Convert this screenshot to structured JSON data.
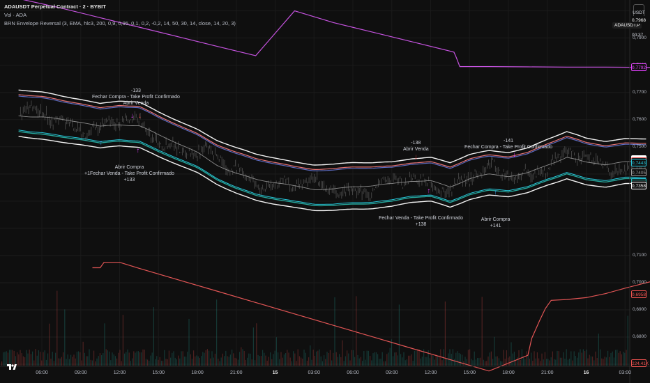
{
  "legend": {
    "title": "ADAUSDT Perpetual Contract · 2 · BYBIT",
    "vol": "Vol · ADA",
    "indicator": "BRN Envelope Reversal (3, EMA, hlc3, 200, 0,9, 0,95, 0,1, 0,2, -0,2, 14, 50, 30, 14, close, 14, 20, 3)"
  },
  "currency_button": "USDT",
  "symbol_tag": "ADAUSDT.P",
  "countdown": "00:37",
  "price_tags": [
    {
      "value": "0,7968",
      "price": 0.7968,
      "bg": "#0f0f0f",
      "fg": "#ffffff",
      "border": "#0f0f0f"
    },
    {
      "value": "0,7792",
      "price": 0.7792,
      "bg": "#0f0f0f",
      "fg": "#e040fb",
      "border": "#e040fb"
    },
    {
      "value": "0,7455",
      "price": 0.7455,
      "bg": "#ffffff",
      "fg": "#000000",
      "border": "#ffffff"
    },
    {
      "value": "0,7447",
      "price": 0.7447,
      "bg": "#0f0f0f",
      "fg": "#ef5350",
      "border": "#ef5350"
    },
    {
      "value": "0,7443",
      "price": 0.7443,
      "bg": "#0f0f0f",
      "fg": "#26c6da",
      "border": "#26c6da"
    },
    {
      "value": "0,7405",
      "price": 0.7405,
      "bg": "#0f0f0f",
      "fg": "#9e9e9e",
      "border": "#9e9e9e"
    },
    {
      "value": "0,7370",
      "price": 0.737,
      "bg": "#0f0f0f",
      "fg": "#26c6da",
      "border": "#26c6da"
    },
    {
      "value": "0,7366",
      "price": 0.7366,
      "bg": "#0f0f0f",
      "fg": "#26a69a",
      "border": "#26a69a"
    },
    {
      "value": "0,7358",
      "price": 0.7358,
      "bg": "#0f0f0f",
      "fg": "#ffffff",
      "border": "#ffffff"
    },
    {
      "value": "0,6958",
      "price": 0.6958,
      "bg": "#0f0f0f",
      "fg": "#ef5350",
      "border": "#ef5350"
    },
    {
      "value": "224,41K",
      "price": 0.6705,
      "bg": "#0f0f0f",
      "fg": "#ef5350",
      "border": "#ef5350"
    }
  ],
  "chart_data": {
    "type": "line",
    "symbol": "ADAUSDT.P",
    "y_ticks": [
      "0,7900",
      "0,7800",
      "0,7700",
      "0,7600",
      "0,7500",
      "0,7400",
      "0,7100",
      "0,7000",
      "0,6900",
      "0,6800"
    ],
    "y_tick_values": [
      0.79,
      0.78,
      0.77,
      0.76,
      0.75,
      0.74,
      0.71,
      0.7,
      0.69,
      0.68
    ],
    "ylim": [
      0.6695,
      0.804
    ],
    "x_ticks": [
      {
        "label": "06:00",
        "bold": false
      },
      {
        "label": "09:00",
        "bold": false
      },
      {
        "label": "12:00",
        "bold": false
      },
      {
        "label": "15:00",
        "bold": false
      },
      {
        "label": "18:00",
        "bold": false
      },
      {
        "label": "21:00",
        "bold": false
      },
      {
        "label": "15",
        "bold": true
      },
      {
        "label": "03:00",
        "bold": false
      },
      {
        "label": "06:00",
        "bold": false
      },
      {
        "label": "09:00",
        "bold": false
      },
      {
        "label": "12:00",
        "bold": false
      },
      {
        "label": "15:00",
        "bold": false
      },
      {
        "label": "18:00",
        "bold": false
      },
      {
        "label": "21:00",
        "bold": false
      },
      {
        "label": "16",
        "bold": true
      },
      {
        "label": "03:00",
        "bold": false
      }
    ],
    "x_tick_index": [
      0,
      1,
      2,
      3,
      4,
      5,
      6,
      7,
      8,
      9,
      10,
      11,
      12,
      13,
      14,
      15
    ],
    "x_range": [
      -0.6,
      15.75
    ],
    "series": [
      {
        "color": "#c653e0",
        "points": [
          [
            -0.6,
            0.8045
          ],
          [
            0.5,
            0.801
          ],
          [
            1.5,
            0.7975
          ],
          [
            2.5,
            0.794
          ],
          [
            3.5,
            0.7905
          ],
          [
            4.5,
            0.787
          ],
          [
            5.5,
            0.7835
          ],
          [
            6.5,
            0.8
          ],
          [
            7.5,
            0.7957
          ],
          [
            8.5,
            0.7922
          ],
          [
            9.5,
            0.7887
          ],
          [
            10.5,
            0.7852
          ],
          [
            10.6,
            0.7848
          ],
          [
            10.65,
            0.7832
          ],
          [
            10.75,
            0.7795
          ],
          [
            11.5,
            0.7795
          ],
          [
            12.5,
            0.7794
          ],
          [
            13.5,
            0.7793
          ],
          [
            14.5,
            0.7793
          ],
          [
            15.7,
            0.7792
          ]
        ]
      },
      {
        "color": "#e25555",
        "points": [
          [
            1.3,
            0.7055
          ],
          [
            1.5,
            0.7055
          ],
          [
            1.6,
            0.7075
          ],
          [
            2.0,
            0.7075
          ],
          [
            2.5,
            0.7053
          ],
          [
            3.5,
            0.7011
          ],
          [
            4.5,
            0.6969
          ],
          [
            5.5,
            0.6927
          ],
          [
            6.5,
            0.6885
          ],
          [
            7.5,
            0.6843
          ],
          [
            8.5,
            0.6801
          ],
          [
            9.5,
            0.6759
          ],
          [
            10.5,
            0.6717
          ],
          [
            11.5,
            0.6675
          ],
          [
            12.5,
            0.6733
          ],
          [
            12.6,
            0.6795
          ],
          [
            12.8,
            0.686
          ],
          [
            12.95,
            0.6905
          ],
          [
            13.1,
            0.6935
          ],
          [
            13.5,
            0.6938
          ],
          [
            14.0,
            0.6945
          ],
          [
            14.5,
            0.696
          ],
          [
            15.0,
            0.698
          ],
          [
            15.5,
            0.6998
          ],
          [
            15.7,
            0.7005
          ]
        ]
      }
    ],
    "annotations": [
      {
        "lines": [
          "-133",
          "Fechar Compra - Take Profit Confirmado",
          "Abrir Venda"
        ],
        "x": 2.42,
        "price": 0.7716,
        "arrows": [
          {
            "glyph": "↓",
            "color": "#e040fb",
            "x": 2.32,
            "price": 0.7611
          },
          {
            "glyph": "↓",
            "color": "#ef5350",
            "x": 2.52,
            "price": 0.7611
          }
        ]
      },
      {
        "lines": [
          "Abrir Compra",
          "+1Fechar Venda - Take Profit Confirmado",
          "+133"
        ],
        "x": 2.25,
        "price": 0.7436,
        "arrows": [
          {
            "glyph": "↑",
            "color": "#42a5f5",
            "x": 1.52,
            "price": 0.7512
          },
          {
            "glyph": "↑",
            "color": "#e040fb",
            "x": 2.47,
            "price": 0.7485
          }
        ]
      },
      {
        "lines": [
          "-138",
          "Abrir Venda"
        ],
        "x": 9.62,
        "price": 0.7525,
        "arrows": [
          {
            "glyph": "↓",
            "color": "#ef5350",
            "x": 9.62,
            "price": 0.7462
          }
        ]
      },
      {
        "lines": [
          "-141",
          "Fechar Compra - Take Profit Confirmado"
        ],
        "x": 12.0,
        "price": 0.7532,
        "arrows": [
          {
            "glyph": "↓",
            "color": "#e040fb",
            "x": 12.15,
            "price": 0.7468
          }
        ]
      },
      {
        "lines": [
          "Fechar Venda - Take Profit Confirmado",
          "+138"
        ],
        "x": 9.75,
        "price": 0.7249,
        "arrows": [
          {
            "glyph": "↑",
            "color": "#e040fb",
            "x": 9.95,
            "price": 0.7335
          }
        ]
      },
      {
        "lines": [
          "Abrir Compra",
          "+141"
        ],
        "x": 11.67,
        "price": 0.7243,
        "arrows": [
          {
            "glyph": "↑",
            "color": "#42a5f5",
            "x": 11.67,
            "price": 0.733
          }
        ]
      }
    ]
  }
}
